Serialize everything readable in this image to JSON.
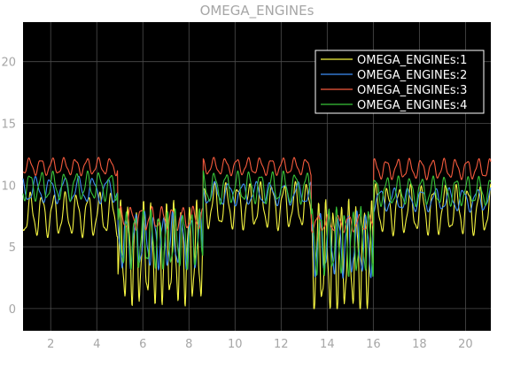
{
  "chart_data": {
    "type": "line",
    "title": "OMEGA_ENGINEs",
    "xlabel": "",
    "ylabel": "",
    "xlim": [
      0.8,
      21.1
    ],
    "ylim": [
      -1.8,
      23.2
    ],
    "xticks": [
      2,
      4,
      6,
      8,
      10,
      12,
      14,
      16,
      18,
      20
    ],
    "yticks": [
      0,
      5,
      10,
      15,
      20
    ],
    "grid": true,
    "legend_position": "top-right",
    "colors": {
      "background": "#000000",
      "grid": "#4d4d4d",
      "tick_text": "#a6a6a6",
      "legend_text": "#ffffff"
    },
    "series": [
      {
        "name": "OMEGA_ENGINEs:1",
        "color": "#f5f541",
        "segments": [
          {
            "x0": 0.8,
            "x1": 4.9,
            "base": 7.6,
            "amp": 1.5,
            "period": 0.5,
            "phase": 0.0
          },
          {
            "x0": 4.9,
            "x1": 8.6,
            "base": 4.5,
            "amp": 3.5,
            "period": 0.33,
            "phase": 0.0,
            "clip_min": 0
          },
          {
            "x0": 8.6,
            "x1": 13.3,
            "base": 8.3,
            "amp": 1.6,
            "period": 0.5,
            "phase": 0.1
          },
          {
            "x0": 13.3,
            "x1": 16.0,
            "base": 4.2,
            "amp": 3.8,
            "period": 0.33,
            "phase": 0.0,
            "clip_min": 0
          },
          {
            "x0": 16.0,
            "x1": 21.1,
            "base": 8.0,
            "amp": 1.7,
            "period": 0.5,
            "phase": 0.2
          }
        ]
      },
      {
        "name": "OMEGA_ENGINEs:2",
        "color": "#3d8ef5",
        "segments": [
          {
            "x0": 0.8,
            "x1": 4.9,
            "base": 9.6,
            "amp": 0.9,
            "period": 0.62,
            "phase": 0.4
          },
          {
            "x0": 4.9,
            "x1": 8.6,
            "base": 5.5,
            "amp": 1.9,
            "period": 0.4,
            "phase": 0.3
          },
          {
            "x0": 8.6,
            "x1": 13.3,
            "base": 9.3,
            "amp": 0.8,
            "period": 0.6,
            "phase": 0.3
          },
          {
            "x0": 13.3,
            "x1": 16.0,
            "base": 5.2,
            "amp": 2.2,
            "period": 0.4,
            "phase": 0.2
          },
          {
            "x0": 16.0,
            "x1": 21.1,
            "base": 8.8,
            "amp": 0.8,
            "period": 0.6,
            "phase": 0.5
          }
        ]
      },
      {
        "name": "OMEGA_ENGINEs:3",
        "color": "#f55a3d",
        "segments": [
          {
            "x0": 0.8,
            "x1": 4.9,
            "base": 11.5,
            "amp": 0.6,
            "period": 0.5,
            "phase": 0.6
          },
          {
            "x0": 4.9,
            "x1": 8.6,
            "base": 7.3,
            "amp": 0.8,
            "period": 0.45,
            "phase": 0.5
          },
          {
            "x0": 8.6,
            "x1": 13.3,
            "base": 11.5,
            "amp": 0.6,
            "period": 0.5,
            "phase": 0.6
          },
          {
            "x0": 13.3,
            "x1": 16.0,
            "base": 6.9,
            "amp": 0.6,
            "period": 0.45,
            "phase": 0.4
          },
          {
            "x0": 16.0,
            "x1": 21.1,
            "base": 11.3,
            "amp": 0.7,
            "period": 0.5,
            "phase": 0.7
          }
        ]
      },
      {
        "name": "OMEGA_ENGINEs:4",
        "color": "#38c438",
        "segments": [
          {
            "x0": 0.8,
            "x1": 4.9,
            "base": 9.9,
            "amp": 1.0,
            "period": 0.5,
            "phase": 0.3
          },
          {
            "x0": 4.9,
            "x1": 8.6,
            "base": 5.6,
            "amp": 2.0,
            "period": 0.35,
            "phase": 0.6
          },
          {
            "x0": 8.6,
            "x1": 13.3,
            "base": 9.8,
            "amp": 1.1,
            "period": 0.5,
            "phase": 0.2
          },
          {
            "x0": 13.3,
            "x1": 16.0,
            "base": 5.4,
            "amp": 2.3,
            "period": 0.35,
            "phase": 0.5
          },
          {
            "x0": 16.0,
            "x1": 21.1,
            "base": 9.5,
            "amp": 1.0,
            "period": 0.5,
            "phase": 0.4
          }
        ]
      }
    ]
  }
}
